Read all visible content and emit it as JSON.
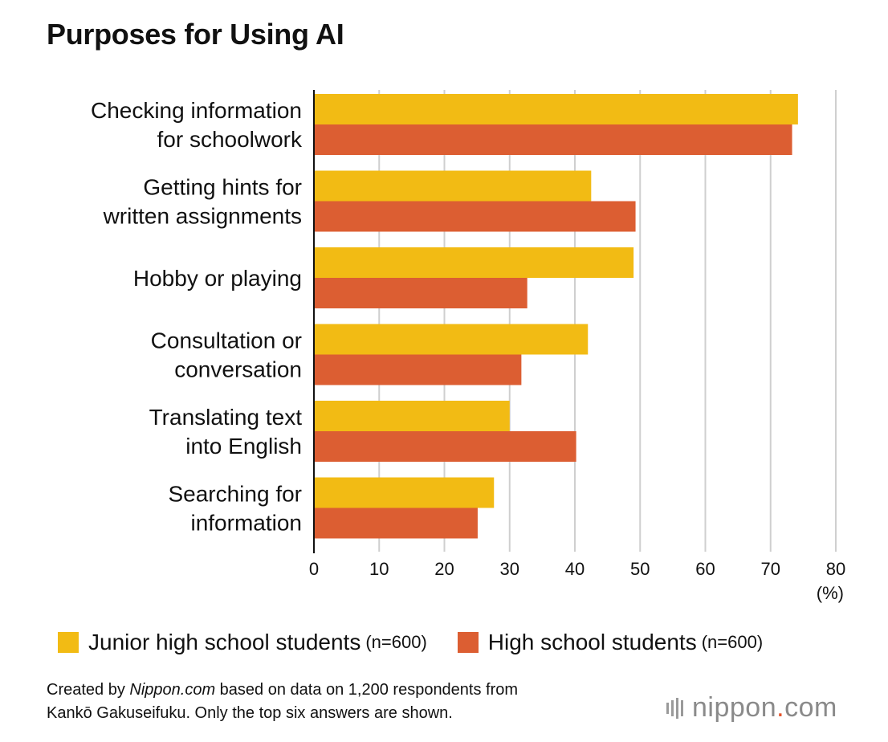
{
  "chart_data": {
    "type": "bar",
    "orientation": "horizontal",
    "title": "Purposes for Using AI",
    "categories": [
      [
        "Checking information",
        "for schoolwork"
      ],
      [
        "Getting hints for",
        "written assignments"
      ],
      [
        "Hobby or playing"
      ],
      [
        "Consultation or",
        "conversation"
      ],
      [
        "Translating text",
        "into English"
      ],
      [
        "Searching for",
        "information"
      ]
    ],
    "series": [
      {
        "name": "Junior high school students",
        "n_label": "(n=600)",
        "color": "#f2bb14",
        "values": [
          74.2,
          42.5,
          49.0,
          42.0,
          30.0,
          27.6
        ]
      },
      {
        "name": "High school students",
        "n_label": "(n=600)",
        "color": "#dc5e32",
        "values": [
          73.3,
          49.3,
          32.7,
          31.8,
          40.2,
          25.1
        ]
      }
    ],
    "xlim": [
      0,
      80
    ],
    "xticks": [
      0,
      10,
      20,
      30,
      40,
      50,
      60,
      70,
      80
    ],
    "xunit": "(%)",
    "grid": true,
    "legend_position": "bottom"
  },
  "footnote": {
    "part1": "Created by ",
    "source_site": "Nippon.com",
    "part2": " based on data on 1,200 respondents from",
    "line2": "Kankō Gakuseifuku. Only the top six answers are shown."
  },
  "brand": {
    "name_a": "nippon",
    "dot": ".",
    "name_b": "com"
  }
}
